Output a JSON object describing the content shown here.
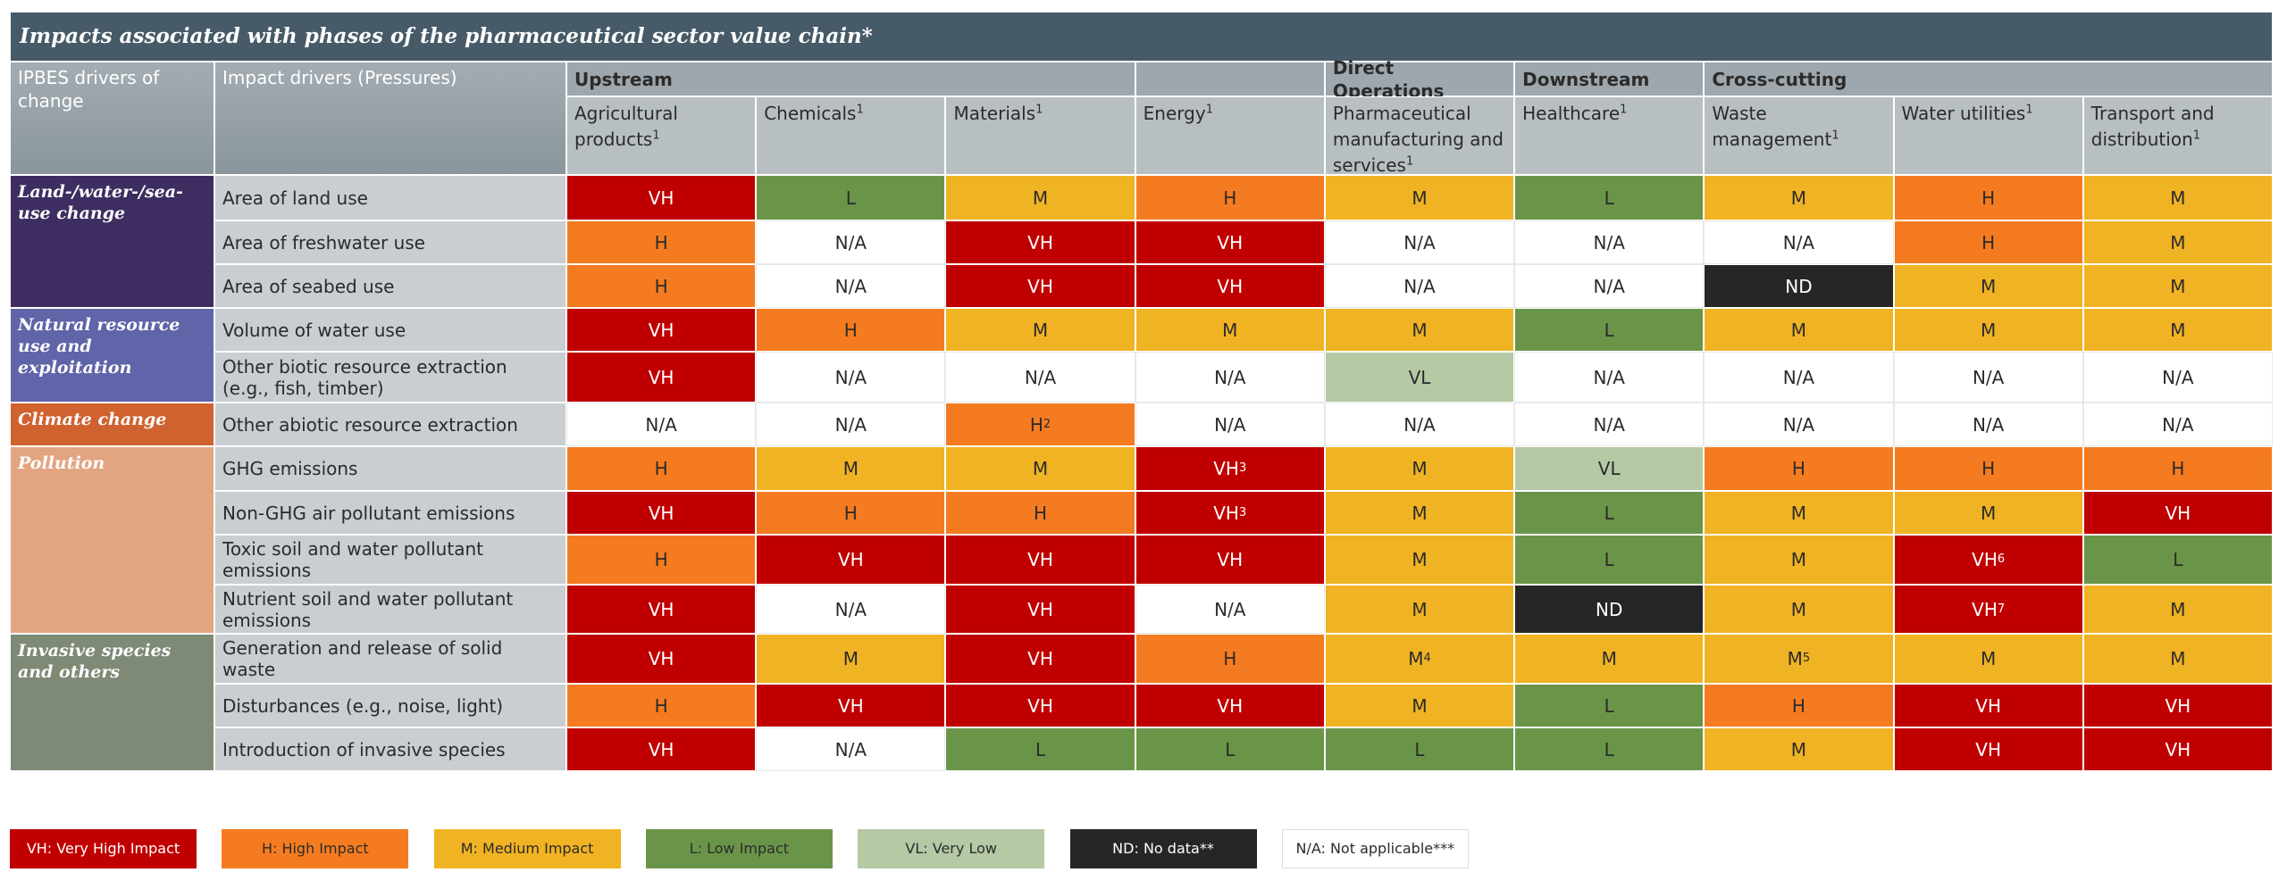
{
  "title": "Impacts associated with phases of the pharmaceutical sector value chain*",
  "header": {
    "drivers": "IPBES drivers of change",
    "pressures": "Impact drivers (Pressures)"
  },
  "groups": [
    {
      "label": "Upstream",
      "columns": [
        {
          "label": "Agricultural products",
          "sup": "1"
        },
        {
          "label": "Chemicals",
          "sup": "1"
        },
        {
          "label": "Materials",
          "sup": "1"
        }
      ]
    },
    {
      "label": null,
      "columns": [
        {
          "label": "Energy",
          "sup": "1"
        }
      ]
    },
    {
      "label": "Direct Operations",
      "columns": [
        {
          "label": "Pharmaceutical manufacturing and services",
          "sup": "1"
        }
      ]
    },
    {
      "label": "Downstream",
      "columns": [
        {
          "label": "Healthcare",
          "sup": "1"
        }
      ]
    },
    {
      "label": "Cross-cutting",
      "columns": [
        {
          "label": "Waste management",
          "sup": "1"
        },
        {
          "label": "Water utilities",
          "sup": "1"
        },
        {
          "label": "Transport and distribution",
          "sup": "1"
        }
      ]
    }
  ],
  "impact_colors": {
    "VH": "#c00000",
    "H": "#f57b20",
    "M": "#f0b323",
    "L": "#6a9549",
    "VL": "#b4c9a4",
    "ND": "#262626",
    "N/A": "#ffffff"
  },
  "drivers": [
    {
      "label": "Land-/water-/sea-use change",
      "color": "#3e2d60",
      "rows": [
        {
          "pressure": "Area of land use",
          "cells": [
            "VH",
            "L",
            "M",
            "H",
            "M",
            "L",
            "M",
            "H",
            "M"
          ]
        },
        {
          "pressure": "Area of freshwater use",
          "cells": [
            "H",
            "N/A",
            "VH",
            "VH",
            "N/A",
            "N/A",
            "N/A",
            "H",
            "M"
          ]
        },
        {
          "pressure": "Area of seabed use",
          "cells": [
            "H",
            "N/A",
            "VH",
            "VH",
            "N/A",
            "N/A",
            "ND",
            "M",
            "M"
          ]
        }
      ]
    },
    {
      "label": "Natural resource use and exploitation",
      "color": "#6064a8",
      "rows": [
        {
          "pressure": "Volume of water use",
          "cells": [
            "VH",
            "H",
            "M",
            "M",
            "M",
            "L",
            "M",
            "M",
            "M"
          ]
        },
        {
          "pressure": "Other biotic resource extraction (e.g., fish, timber)",
          "cells": [
            "VH",
            "N/A",
            "N/A",
            "N/A",
            "VL",
            "N/A",
            "N/A",
            "N/A",
            "N/A"
          ]
        }
      ]
    },
    {
      "label": "Climate change",
      "color": "#d0622f",
      "rows": [
        {
          "pressure": "Other abiotic resource extraction",
          "cells": [
            "N/A",
            "N/A",
            {
              "v": "H",
              "sup": "2"
            },
            "N/A",
            "N/A",
            "N/A",
            "N/A",
            "N/A",
            "N/A"
          ]
        }
      ]
    },
    {
      "label": "Pollution",
      "color": "#e3a482",
      "rows": [
        {
          "pressure": "GHG emissions",
          "cells": [
            "H",
            "M",
            "M",
            {
              "v": "VH",
              "sup": "3"
            },
            "M",
            "VL",
            "H",
            "H",
            "H"
          ]
        },
        {
          "pressure": "Non-GHG air pollutant emissions",
          "cells": [
            "VH",
            "H",
            "H",
            {
              "v": "VH",
              "sup": "3"
            },
            "M",
            "L",
            "M",
            "M",
            "VH"
          ]
        },
        {
          "pressure": "Toxic soil and water pollutant emissions",
          "cells": [
            "H",
            "VH",
            "VH",
            "VH",
            "M",
            "L",
            "M",
            {
              "v": "VH",
              "sup": "6"
            },
            "L"
          ]
        },
        {
          "pressure": "Nutrient soil and water pollutant emissions",
          "cells": [
            "VH",
            "N/A",
            "VH",
            "N/A",
            "M",
            "ND",
            "M",
            {
              "v": "VH",
              "sup": "7"
            },
            "M"
          ]
        }
      ]
    },
    {
      "label": "Invasive species and others",
      "color": "#7f8a76",
      "rows": [
        {
          "pressure": "Generation and release of solid waste",
          "cells": [
            "VH",
            "M",
            "VH",
            "H",
            {
              "v": "M",
              "sup": "4"
            },
            "M",
            {
              "v": "M",
              "sup": "5"
            },
            "M",
            "M"
          ]
        },
        {
          "pressure": "Disturbances (e.g., noise, light)",
          "cells": [
            "H",
            "VH",
            "VH",
            "VH",
            "M",
            "L",
            "H",
            "VH",
            "VH"
          ]
        },
        {
          "pressure": "Introduction of invasive species",
          "cells": [
            "VH",
            "N/A",
            "L",
            "L",
            "L",
            "L",
            "M",
            "VH",
            "VH"
          ]
        }
      ]
    }
  ],
  "legend": [
    {
      "label": "VH: Very High Impact",
      "color": "#c00000"
    },
    {
      "label": "H: High Impact",
      "color": "#f57b20"
    },
    {
      "label": "M: Medium Impact",
      "color": "#f0b323"
    },
    {
      "label": "L: Low Impact",
      "color": "#6a9549"
    },
    {
      "label": "VL: Very Low",
      "color": "#b4c9a4"
    },
    {
      "label": "ND: No data**",
      "color": "#262626"
    },
    {
      "label": "N/A: Not applicable***",
      "color": "#ffffff"
    }
  ]
}
